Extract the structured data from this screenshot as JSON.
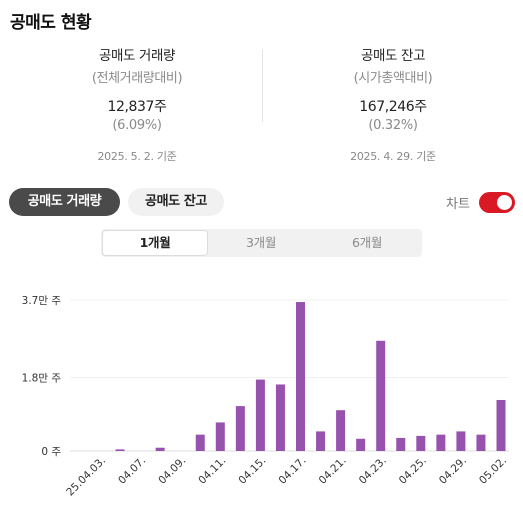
{
  "title": "공매도 현황",
  "stats": {
    "volume": {
      "heading": "공매도 거래량",
      "subheading": "(전체거래량대비)",
      "value": "12,837주",
      "percent": "(6.09%)",
      "date": "2025. 5. 2. 기준"
    },
    "balance": {
      "heading": "공매도 잔고",
      "subheading": "(시가총액대비)",
      "value": "167,246주",
      "percent": "(0.32%)",
      "date": "2025. 4. 29. 기준"
    }
  },
  "type_buttons": {
    "volume_label": "공매도 거래량",
    "balance_label": "공매도 잔고",
    "selected": "volume"
  },
  "toggle": {
    "label": "차트",
    "on": true
  },
  "periods": [
    "1개월",
    "3개월",
    "6개월"
  ],
  "selected_period": "1개월",
  "colors": {
    "bar": "#9752ae",
    "toggle_on": "#d91a25",
    "active_button": "#4a4a4a"
  },
  "chart_data": {
    "type": "bar",
    "categories": [
      "25.04.03.",
      "",
      "04.07.",
      "",
      "04.09.",
      "",
      "04.11.",
      "",
      "04.15.",
      "",
      "04.17.",
      "",
      "04.21.",
      "",
      "04.23.",
      "",
      "04.25.",
      "",
      "04.29.",
      "",
      "05.02."
    ],
    "values": [
      0,
      400,
      0,
      800,
      0,
      4000,
      7000,
      11000,
      17500,
      16300,
      36500,
      4800,
      10000,
      3000,
      27000,
      3200,
      3700,
      4000,
      4800,
      4000,
      12500
    ],
    "ytick_labels": [
      "3.7만 주",
      "1.8만 주",
      "0 주"
    ],
    "ytick_values": [
      37000,
      18000,
      0
    ],
    "ylim": [
      0,
      37000
    ],
    "grid": true
  }
}
